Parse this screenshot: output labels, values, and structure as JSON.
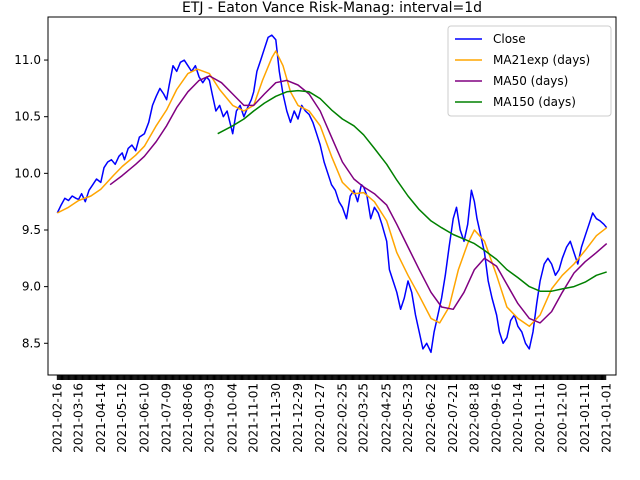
{
  "chart_data": {
    "type": "line",
    "title": "ETJ - Eaton Vance Risk-Manag: interval=1d",
    "xlabel": "",
    "ylabel": "",
    "ylim": [
      8.22,
      11.38
    ],
    "yticks": [
      "8.5",
      "9.0",
      "9.5",
      "10.0",
      "10.5",
      "11.0"
    ],
    "ytick_values": [
      8.5,
      9.0,
      9.5,
      10.0,
      10.5,
      11.0
    ],
    "xtick_labels": [
      "2021-02-16",
      "2021-03-16",
      "2021-04-14",
      "2021-05-12",
      "2021-06-10",
      "2021-07-09",
      "2021-08-06",
      "2021-09-03",
      "2021-10-04",
      "2021-11-01",
      "2021-11-30",
      "2021-12-29",
      "2022-01-27",
      "2022-02-25",
      "2022-03-25",
      "2022-04-25",
      "2022-05-23",
      "2022-06-22",
      "2022-07-21",
      "2022-08-18",
      "2020-09-16",
      "2020-10-14",
      "2020-11-11",
      "2020-12-10",
      "2021-01-11",
      "2021-01-01"
    ],
    "legend": {
      "position": "top-right",
      "entries": [
        "Close",
        "MA21exp (days)",
        "MA50 (days)",
        "MA150 (days)"
      ]
    },
    "colors": {
      "Close": "#0000ff",
      "MA21exp (days)": "#ffa500",
      "MA50 (days)": "#800080",
      "MA150 (days)": "#008000"
    },
    "x_positions": [
      0,
      1.14,
      2.33,
      3.48,
      4.67,
      5.86,
      7.0,
      8.15,
      9.4,
      10.53,
      11.71,
      12.9,
      14.09,
      15.28,
      16.42,
      17.66,
      18.8,
      20.03,
      21.22,
      22.36,
      23.55,
      24.69,
      25.88,
      27.07,
      28.3,
      29.45
    ],
    "series": [
      {
        "name": "Close",
        "points": [
          [
            0,
            9.65
          ],
          [
            0.2,
            9.72
          ],
          [
            0.4,
            9.78
          ],
          [
            0.6,
            9.76
          ],
          [
            0.8,
            9.8
          ],
          [
            1.0,
            9.78
          ],
          [
            1.14,
            9.77
          ],
          [
            1.3,
            9.82
          ],
          [
            1.5,
            9.75
          ],
          [
            1.7,
            9.85
          ],
          [
            1.9,
            9.9
          ],
          [
            2.1,
            9.95
          ],
          [
            2.33,
            9.92
          ],
          [
            2.5,
            10.05
          ],
          [
            2.7,
            10.1
          ],
          [
            2.9,
            10.12
          ],
          [
            3.1,
            10.08
          ],
          [
            3.3,
            10.15
          ],
          [
            3.48,
            10.18
          ],
          [
            3.6,
            10.12
          ],
          [
            3.8,
            10.22
          ],
          [
            4.0,
            10.25
          ],
          [
            4.2,
            10.2
          ],
          [
            4.4,
            10.32
          ],
          [
            4.67,
            10.35
          ],
          [
            4.9,
            10.45
          ],
          [
            5.1,
            10.6
          ],
          [
            5.3,
            10.68
          ],
          [
            5.5,
            10.75
          ],
          [
            5.7,
            10.7
          ],
          [
            5.86,
            10.65
          ],
          [
            6.0,
            10.78
          ],
          [
            6.2,
            10.95
          ],
          [
            6.4,
            10.9
          ],
          [
            6.6,
            10.98
          ],
          [
            6.8,
            11.0
          ],
          [
            7.0,
            10.95
          ],
          [
            7.2,
            10.9
          ],
          [
            7.4,
            10.95
          ],
          [
            7.6,
            10.85
          ],
          [
            7.8,
            10.8
          ],
          [
            8.0,
            10.85
          ],
          [
            8.15,
            10.82
          ],
          [
            8.3,
            10.7
          ],
          [
            8.5,
            10.55
          ],
          [
            8.7,
            10.6
          ],
          [
            8.9,
            10.5
          ],
          [
            9.1,
            10.55
          ],
          [
            9.4,
            10.35
          ],
          [
            9.6,
            10.55
          ],
          [
            9.8,
            10.6
          ],
          [
            10.0,
            10.5
          ],
          [
            10.2,
            10.58
          ],
          [
            10.4,
            10.65
          ],
          [
            10.53,
            10.72
          ],
          [
            10.7,
            10.9
          ],
          [
            10.9,
            11.0
          ],
          [
            11.1,
            11.1
          ],
          [
            11.3,
            11.2
          ],
          [
            11.5,
            11.22
          ],
          [
            11.71,
            11.18
          ],
          [
            11.9,
            10.9
          ],
          [
            12.1,
            10.7
          ],
          [
            12.3,
            10.55
          ],
          [
            12.5,
            10.45
          ],
          [
            12.7,
            10.55
          ],
          [
            12.9,
            10.48
          ],
          [
            13.1,
            10.6
          ],
          [
            13.3,
            10.55
          ],
          [
            13.5,
            10.52
          ],
          [
            13.7,
            10.45
          ],
          [
            13.9,
            10.35
          ],
          [
            14.09,
            10.25
          ],
          [
            14.3,
            10.1
          ],
          [
            14.5,
            10.0
          ],
          [
            14.7,
            9.9
          ],
          [
            14.9,
            9.85
          ],
          [
            15.1,
            9.75
          ],
          [
            15.28,
            9.7
          ],
          [
            15.5,
            9.6
          ],
          [
            15.7,
            9.8
          ],
          [
            15.9,
            9.85
          ],
          [
            16.1,
            9.75
          ],
          [
            16.3,
            9.9
          ],
          [
            16.42,
            9.88
          ],
          [
            16.6,
            9.8
          ],
          [
            16.8,
            9.6
          ],
          [
            17.0,
            9.7
          ],
          [
            17.2,
            9.65
          ],
          [
            17.4,
            9.55
          ],
          [
            17.66,
            9.4
          ],
          [
            17.8,
            9.15
          ],
          [
            18.0,
            9.05
          ],
          [
            18.2,
            8.95
          ],
          [
            18.4,
            8.8
          ],
          [
            18.6,
            8.9
          ],
          [
            18.8,
            9.05
          ],
          [
            19.0,
            8.95
          ],
          [
            19.2,
            8.75
          ],
          [
            19.4,
            8.6
          ],
          [
            19.6,
            8.45
          ],
          [
            19.8,
            8.5
          ],
          [
            20.03,
            8.42
          ],
          [
            20.2,
            8.6
          ],
          [
            20.4,
            8.75
          ],
          [
            20.6,
            8.9
          ],
          [
            20.8,
            9.1
          ],
          [
            21.0,
            9.35
          ],
          [
            21.22,
            9.6
          ],
          [
            21.4,
            9.7
          ],
          [
            21.6,
            9.5
          ],
          [
            21.8,
            9.4
          ],
          [
            22.0,
            9.55
          ],
          [
            22.2,
            9.85
          ],
          [
            22.36,
            9.75
          ],
          [
            22.5,
            9.6
          ],
          [
            22.7,
            9.45
          ],
          [
            22.9,
            9.3
          ],
          [
            23.1,
            9.05
          ],
          [
            23.3,
            8.9
          ],
          [
            23.55,
            8.75
          ],
          [
            23.7,
            8.6
          ],
          [
            23.9,
            8.5
          ],
          [
            24.1,
            8.55
          ],
          [
            24.3,
            8.7
          ],
          [
            24.5,
            8.75
          ],
          [
            24.69,
            8.65
          ],
          [
            24.9,
            8.6
          ],
          [
            25.1,
            8.5
          ],
          [
            25.3,
            8.45
          ],
          [
            25.5,
            8.6
          ],
          [
            25.7,
            8.85
          ],
          [
            25.88,
            9.05
          ],
          [
            26.1,
            9.2
          ],
          [
            26.3,
            9.25
          ],
          [
            26.5,
            9.2
          ],
          [
            26.7,
            9.1
          ],
          [
            26.9,
            9.15
          ],
          [
            27.07,
            9.25
          ],
          [
            27.3,
            9.35
          ],
          [
            27.5,
            9.4
          ],
          [
            27.7,
            9.3
          ],
          [
            27.9,
            9.2
          ],
          [
            28.1,
            9.35
          ],
          [
            28.3,
            9.45
          ],
          [
            28.5,
            9.55
          ],
          [
            28.7,
            9.65
          ],
          [
            28.9,
            9.6
          ],
          [
            29.1,
            9.58
          ],
          [
            29.3,
            9.55
          ],
          [
            29.45,
            9.52
          ]
        ]
      },
      {
        "name": "MA21exp (days)",
        "points": [
          [
            0,
            9.65
          ],
          [
            0.6,
            9.7
          ],
          [
            1.14,
            9.76
          ],
          [
            1.8,
            9.8
          ],
          [
            2.33,
            9.86
          ],
          [
            3.0,
            9.98
          ],
          [
            3.48,
            10.06
          ],
          [
            4.2,
            10.16
          ],
          [
            4.67,
            10.24
          ],
          [
            5.3,
            10.42
          ],
          [
            5.86,
            10.56
          ],
          [
            6.4,
            10.74
          ],
          [
            7.0,
            10.88
          ],
          [
            7.5,
            10.92
          ],
          [
            8.15,
            10.88
          ],
          [
            8.7,
            10.74
          ],
          [
            9.4,
            10.6
          ],
          [
            10.0,
            10.55
          ],
          [
            10.53,
            10.6
          ],
          [
            11.0,
            10.82
          ],
          [
            11.5,
            11.02
          ],
          [
            11.71,
            11.08
          ],
          [
            12.1,
            10.95
          ],
          [
            12.5,
            10.72
          ],
          [
            12.9,
            10.6
          ],
          [
            13.5,
            10.55
          ],
          [
            14.09,
            10.42
          ],
          [
            14.7,
            10.15
          ],
          [
            15.28,
            9.92
          ],
          [
            15.9,
            9.82
          ],
          [
            16.42,
            9.83
          ],
          [
            17.0,
            9.75
          ],
          [
            17.66,
            9.58
          ],
          [
            18.2,
            9.3
          ],
          [
            18.8,
            9.1
          ],
          [
            19.4,
            8.92
          ],
          [
            20.03,
            8.72
          ],
          [
            20.5,
            8.68
          ],
          [
            21.0,
            8.82
          ],
          [
            21.5,
            9.15
          ],
          [
            22.0,
            9.38
          ],
          [
            22.36,
            9.5
          ],
          [
            22.9,
            9.4
          ],
          [
            23.55,
            9.1
          ],
          [
            24.1,
            8.82
          ],
          [
            24.69,
            8.72
          ],
          [
            25.3,
            8.65
          ],
          [
            25.88,
            8.75
          ],
          [
            26.5,
            8.98
          ],
          [
            27.07,
            9.1
          ],
          [
            27.7,
            9.2
          ],
          [
            28.3,
            9.32
          ],
          [
            28.9,
            9.45
          ],
          [
            29.45,
            9.52
          ]
        ]
      },
      {
        "name": "MA50 (days)",
        "points": [
          [
            2.83,
            9.9
          ],
          [
            3.48,
            9.98
          ],
          [
            4.2,
            10.08
          ],
          [
            4.67,
            10.15
          ],
          [
            5.3,
            10.28
          ],
          [
            5.86,
            10.42
          ],
          [
            6.4,
            10.58
          ],
          [
            7.0,
            10.72
          ],
          [
            7.6,
            10.82
          ],
          [
            8.15,
            10.86
          ],
          [
            8.8,
            10.8
          ],
          [
            9.4,
            10.7
          ],
          [
            10.0,
            10.6
          ],
          [
            10.53,
            10.6
          ],
          [
            11.1,
            10.7
          ],
          [
            11.71,
            10.8
          ],
          [
            12.3,
            10.82
          ],
          [
            12.9,
            10.78
          ],
          [
            13.5,
            10.7
          ],
          [
            14.09,
            10.55
          ],
          [
            14.7,
            10.32
          ],
          [
            15.28,
            10.1
          ],
          [
            15.9,
            9.95
          ],
          [
            16.42,
            9.88
          ],
          [
            17.0,
            9.82
          ],
          [
            17.66,
            9.72
          ],
          [
            18.2,
            9.55
          ],
          [
            18.8,
            9.35
          ],
          [
            19.4,
            9.15
          ],
          [
            20.03,
            8.95
          ],
          [
            20.6,
            8.82
          ],
          [
            21.22,
            8.8
          ],
          [
            21.8,
            8.95
          ],
          [
            22.36,
            9.15
          ],
          [
            22.9,
            9.25
          ],
          [
            23.55,
            9.18
          ],
          [
            24.1,
            9.02
          ],
          [
            24.69,
            8.85
          ],
          [
            25.3,
            8.72
          ],
          [
            25.88,
            8.68
          ],
          [
            26.5,
            8.78
          ],
          [
            27.07,
            8.95
          ],
          [
            27.7,
            9.12
          ],
          [
            28.3,
            9.22
          ],
          [
            28.9,
            9.3
          ],
          [
            29.45,
            9.38
          ]
        ]
      },
      {
        "name": "MA150 (days)",
        "points": [
          [
            8.6,
            10.35
          ],
          [
            9.4,
            10.42
          ],
          [
            10.0,
            10.48
          ],
          [
            10.53,
            10.55
          ],
          [
            11.1,
            10.62
          ],
          [
            11.71,
            10.68
          ],
          [
            12.3,
            10.72
          ],
          [
            12.9,
            10.73
          ],
          [
            13.5,
            10.72
          ],
          [
            14.09,
            10.66
          ],
          [
            14.7,
            10.56
          ],
          [
            15.28,
            10.48
          ],
          [
            15.9,
            10.42
          ],
          [
            16.42,
            10.34
          ],
          [
            17.0,
            10.22
          ],
          [
            17.66,
            10.08
          ],
          [
            18.2,
            9.94
          ],
          [
            18.8,
            9.8
          ],
          [
            19.4,
            9.68
          ],
          [
            20.03,
            9.58
          ],
          [
            20.6,
            9.52
          ],
          [
            21.22,
            9.46
          ],
          [
            21.8,
            9.42
          ],
          [
            22.36,
            9.38
          ],
          [
            22.9,
            9.32
          ],
          [
            23.55,
            9.24
          ],
          [
            24.1,
            9.15
          ],
          [
            24.69,
            9.08
          ],
          [
            25.3,
            9.0
          ],
          [
            25.88,
            8.96
          ],
          [
            26.5,
            8.96
          ],
          [
            27.07,
            8.98
          ],
          [
            27.7,
            9.0
          ],
          [
            28.3,
            9.04
          ],
          [
            28.9,
            9.1
          ],
          [
            29.45,
            9.13
          ]
        ]
      }
    ]
  }
}
